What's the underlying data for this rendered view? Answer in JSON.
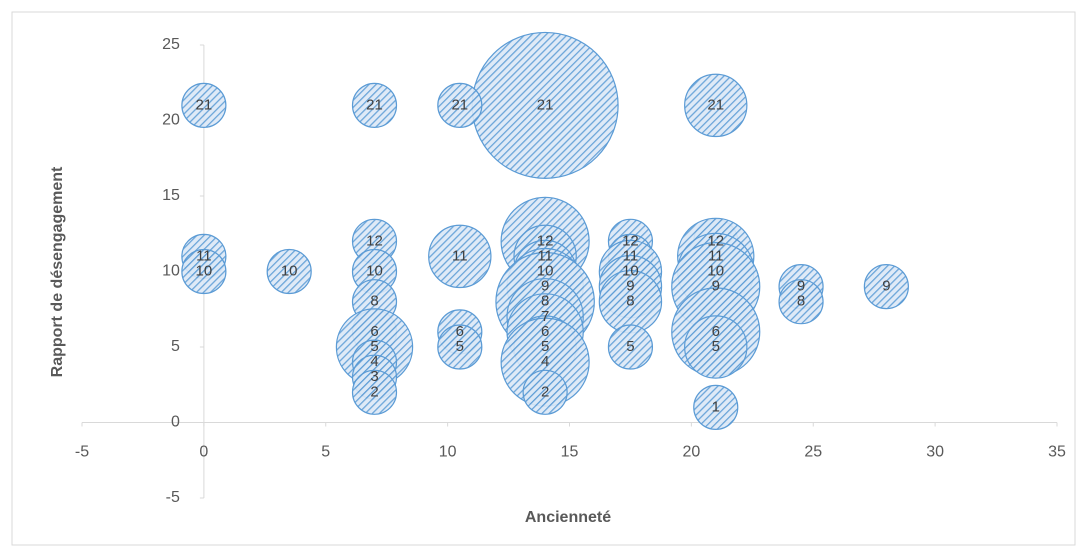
{
  "chart_data": {
    "type": "bubble",
    "xlabel": "Ancienneté",
    "ylabel": "Rapport de désengagement",
    "xlim": [
      -5,
      35
    ],
    "ylim": [
      -5,
      25
    ],
    "xticks": [
      -5,
      0,
      5,
      10,
      15,
      20,
      25,
      30,
      35
    ],
    "yticks": [
      -5,
      0,
      5,
      10,
      15,
      20,
      25
    ],
    "color": "#5b9bd5",
    "x": [
      14,
      0,
      7,
      10.5,
      21,
      0,
      0,
      3.5,
      7,
      7,
      7,
      7,
      7,
      7,
      7,
      7,
      10.5,
      10.5,
      10.5,
      14,
      14,
      14,
      14,
      14,
      14,
      14,
      14,
      14,
      14,
      17.5,
      17.5,
      17.5,
      17.5,
      17.5,
      17.5,
      21,
      21,
      21,
      21,
      21,
      21,
      21,
      24.5,
      24.5,
      28
    ],
    "y": [
      21,
      21,
      21,
      21,
      21,
      11,
      10,
      10,
      12,
      10,
      8,
      6,
      5,
      4,
      3,
      2,
      11,
      6,
      5,
      12,
      11,
      10,
      9,
      8,
      7,
      6,
      5,
      4,
      2,
      12,
      11,
      10,
      9,
      8,
      5,
      12,
      11,
      10,
      9,
      6,
      5,
      1,
      9,
      8,
      9
    ],
    "sizes": [
      11,
      1,
      1,
      1,
      2,
      1,
      1,
      1,
      1,
      1,
      1,
      1,
      3,
      1,
      1,
      1,
      2,
      1,
      1,
      4,
      2,
      2,
      3,
      5,
      3,
      3,
      2,
      4,
      1,
      1,
      1,
      2,
      2,
      2,
      1,
      1,
      3,
      3,
      4,
      4,
      2,
      1,
      1,
      1,
      1
    ]
  }
}
